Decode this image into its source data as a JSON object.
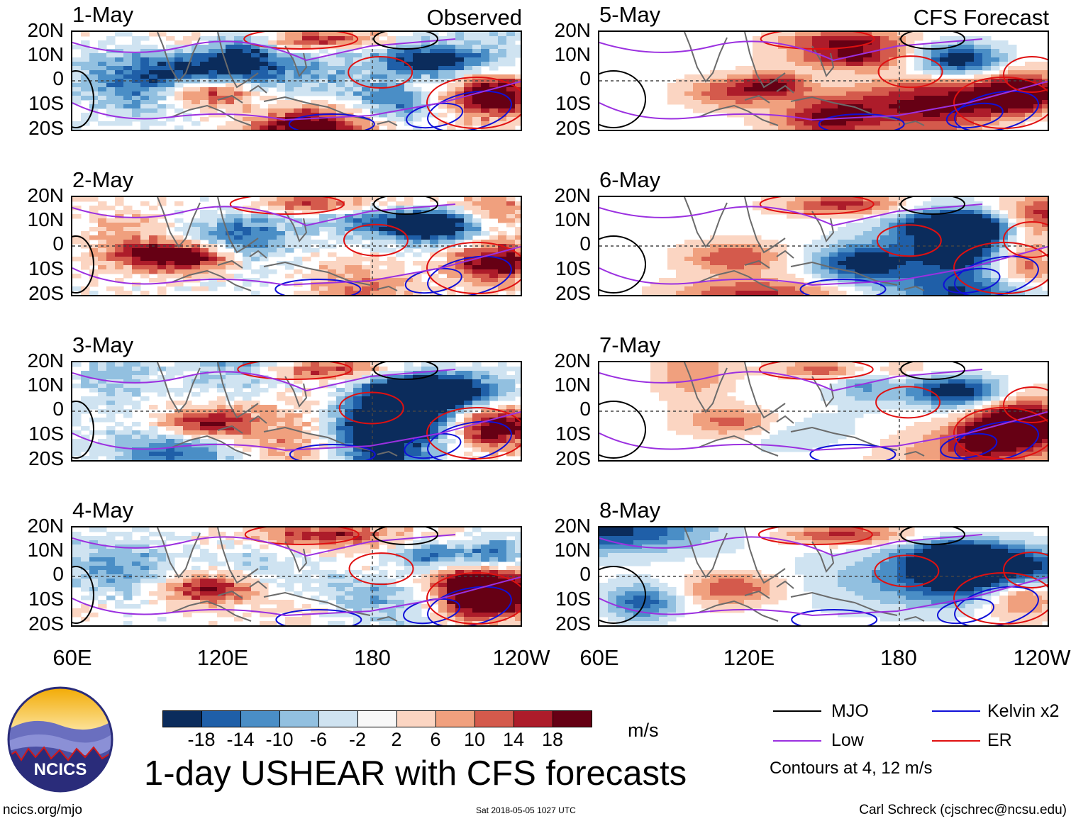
{
  "panels": [
    {
      "date": "1-May",
      "corner": "Observed"
    },
    {
      "date": "2-May",
      "corner": ""
    },
    {
      "date": "3-May",
      "corner": ""
    },
    {
      "date": "4-May",
      "corner": ""
    },
    {
      "date": "5-May",
      "corner": "CFS Forecast"
    },
    {
      "date": "6-May",
      "corner": ""
    },
    {
      "date": "7-May",
      "corner": ""
    },
    {
      "date": "8-May",
      "corner": ""
    }
  ],
  "lat_labels": [
    "20N",
    "10N",
    "0",
    "10S",
    "20S"
  ],
  "lon_labels_left": [
    "60E",
    "120E",
    "180",
    "120W"
  ],
  "lon_labels_right": [
    "60E",
    "120E",
    "180",
    "120W"
  ],
  "colorbar": {
    "colors": [
      "#0b2c5c",
      "#1f5fa8",
      "#4a8ec6",
      "#92c0e0",
      "#cfe3f1",
      "#f8f8f8",
      "#fbd5c2",
      "#f0a07e",
      "#d45a4c",
      "#ad1c2a",
      "#660014"
    ],
    "ticks": [
      "-18",
      "-14",
      "-10",
      "-6",
      "-2",
      "2",
      "6",
      "10",
      "14",
      "18"
    ],
    "units": "m/s"
  },
  "title": "1-day USHEAR with CFS forecasts",
  "legend": {
    "items": [
      {
        "label": "MJO",
        "color": "#000000"
      },
      {
        "label": "Kelvin x2",
        "color": "#1010d8"
      },
      {
        "label": "Low",
        "color": "#9b30e0"
      },
      {
        "label": "ER",
        "color": "#e01010"
      }
    ],
    "note": "Contours at 4, 12 m/s"
  },
  "logo": {
    "text": "NCICS"
  },
  "footer": {
    "left": "ncics.org/mjo",
    "center": "Sat 2018-05-05 1027 UTC",
    "right": "Carl Schreck (cjschrec@ncsu.edu)"
  }
}
